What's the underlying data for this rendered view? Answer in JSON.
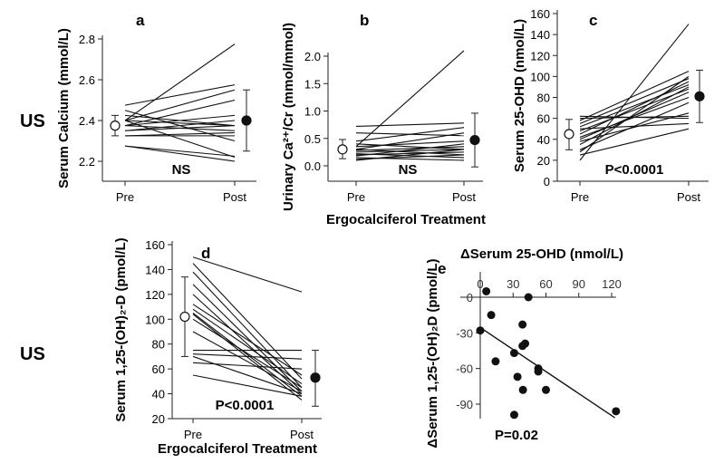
{
  "row_labels": [
    "US",
    "US"
  ],
  "shared_xlabel": "Ergocalciferol Treatment",
  "chart_data": [
    {
      "type": "line",
      "panel": "a",
      "ylabel": "Serum Calcium (mmol/L)",
      "ylim": [
        2.1,
        2.8
      ],
      "yticks": [
        2.2,
        2.4,
        2.6,
        2.8
      ],
      "categories": [
        "Pre",
        "Post"
      ],
      "annotation": "NS",
      "pairs": [
        [
          2.475,
          2.575
        ],
        [
          2.45,
          2.3
        ],
        [
          2.4,
          2.775
        ],
        [
          2.4,
          2.55
        ],
        [
          2.4,
          2.375
        ],
        [
          2.4,
          2.22
        ],
        [
          2.375,
          2.5
        ],
        [
          2.375,
          2.425
        ],
        [
          2.375,
          2.35
        ],
        [
          2.35,
          2.4
        ],
        [
          2.35,
          2.375
        ],
        [
          2.325,
          2.325
        ],
        [
          2.325,
          2.34
        ],
        [
          2.425,
          2.375
        ],
        [
          2.275,
          2.225
        ],
        [
          2.275,
          2.2
        ]
      ],
      "mean": {
        "pre": [
          2.375,
          2.325,
          2.425
        ],
        "post": [
          2.4,
          2.25,
          2.55
        ]
      }
    },
    {
      "type": "line",
      "panel": "b",
      "ylabel": "Urinary Ca²⁺/Cr (mmol/mmol)",
      "ylim": [
        -0.2,
        2.3
      ],
      "yticks": [
        0.0,
        0.5,
        1.0,
        1.5,
        2.0
      ],
      "categories": [
        "Pre",
        "Post"
      ],
      "annotation": "NS",
      "pairs": [
        [
          0.35,
          2.1
        ],
        [
          0.72,
          0.78
        ],
        [
          0.6,
          0.55
        ],
        [
          0.45,
          0.7
        ],
        [
          0.4,
          0.3
        ],
        [
          0.35,
          0.45
        ],
        [
          0.3,
          0.2
        ],
        [
          0.28,
          0.35
        ],
        [
          0.25,
          0.3
        ],
        [
          0.22,
          0.15
        ],
        [
          0.2,
          0.25
        ],
        [
          0.18,
          0.4
        ],
        [
          0.15,
          0.1
        ],
        [
          0.12,
          0.2
        ],
        [
          0.3,
          0.6
        ],
        [
          0.1,
          0.3
        ]
      ],
      "mean": {
        "pre": [
          0.3,
          0.13,
          0.48
        ],
        "post": [
          0.47,
          -0.02,
          0.96
        ]
      }
    },
    {
      "type": "line",
      "panel": "c",
      "ylabel": "Serum 25-OHD (nmol/L)",
      "ylim": [
        0,
        160
      ],
      "yticks": [
        0,
        20,
        40,
        60,
        80,
        100,
        120,
        140,
        160
      ],
      "categories": [
        "Pre",
        "Post"
      ],
      "annotation": "P<0.0001",
      "pairs": [
        [
          20,
          150
        ],
        [
          62,
          60
        ],
        [
          58,
          105
        ],
        [
          55,
          98
        ],
        [
          52,
          92
        ],
        [
          50,
          55
        ],
        [
          48,
          88
        ],
        [
          45,
          95
        ],
        [
          42,
          80
        ],
        [
          40,
          85
        ],
        [
          38,
          65
        ],
        [
          35,
          90
        ],
        [
          30,
          75
        ],
        [
          28,
          100
        ],
        [
          25,
          50
        ],
        [
          60,
          62
        ]
      ],
      "mean": {
        "pre": [
          45,
          30,
          59
        ],
        "post": [
          81,
          56,
          106
        ]
      }
    },
    {
      "type": "line",
      "panel": "d",
      "ylabel": "Serum 1,25-(OH)₂-D (pmol/L)",
      "ylim": [
        20,
        160
      ],
      "yticks": [
        20,
        40,
        60,
        80,
        100,
        120,
        140,
        160
      ],
      "categories": [
        "Pre",
        "Post"
      ],
      "annotation": "P<0.0001",
      "pairs": [
        [
          150,
          122
        ],
        [
          145,
          52
        ],
        [
          138,
          45
        ],
        [
          128,
          42
        ],
        [
          120,
          40
        ],
        [
          112,
          55
        ],
        [
          108,
          48
        ],
        [
          105,
          38
        ],
        [
          104,
          35
        ],
        [
          100,
          45
        ],
        [
          90,
          42
        ],
        [
          75,
          75
        ],
        [
          72,
          68
        ],
        [
          70,
          40
        ],
        [
          65,
          60
        ],
        [
          55,
          38
        ]
      ],
      "mean": {
        "pre": [
          102,
          70,
          134
        ],
        "post": [
          53,
          30,
          75
        ]
      }
    },
    {
      "type": "scatter",
      "panel": "e",
      "xlabel": "ΔSerum 25-OHD (nmol/L)",
      "ylabel": "ΔSerum 1,25-(OH)₂D (pmol/L)",
      "xlim": [
        0,
        125
      ],
      "ylim": [
        -100,
        8
      ],
      "xticks": [
        0,
        30,
        60,
        90,
        120
      ],
      "yticks": [
        0,
        -30,
        -60,
        -90
      ],
      "annotation": "P=0.02",
      "points": [
        [
          5.5,
          5
        ],
        [
          44,
          0
        ],
        [
          10,
          -15
        ],
        [
          38.6,
          -23
        ],
        [
          0,
          -28
        ],
        [
          38.6,
          -41
        ],
        [
          41,
          -39
        ],
        [
          31,
          -47
        ],
        [
          14,
          -54
        ],
        [
          53,
          -60
        ],
        [
          53,
          -62.5
        ],
        [
          34,
          -67
        ],
        [
          39,
          -78
        ],
        [
          60,
          -78
        ],
        [
          31,
          -99
        ],
        [
          124,
          -96
        ]
      ],
      "fit": [
        [
          0,
          -25.5
        ],
        [
          123,
          -101.5
        ]
      ]
    }
  ]
}
